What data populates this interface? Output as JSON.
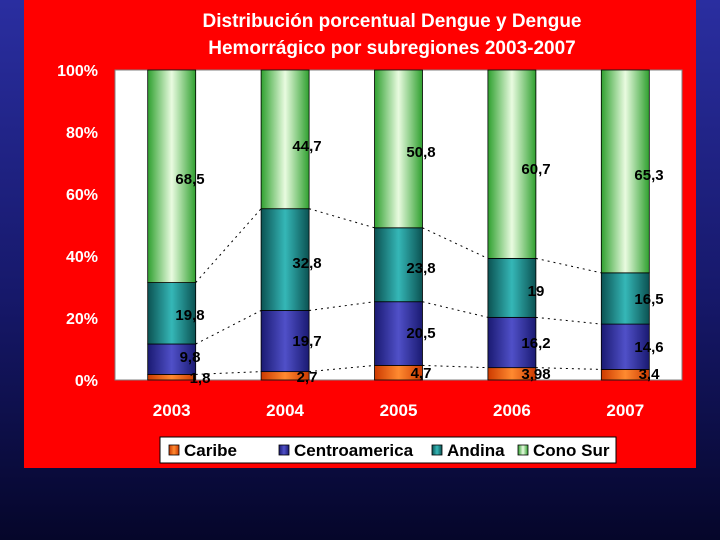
{
  "colors": {
    "background": "#1c1f86",
    "chart_panel": "#ff0000",
    "plot_area": "#ffffff",
    "Caribe": "#ff5a00",
    "Centroamerica": "#2c2c94",
    "Andina": "#1f8c8c",
    "Cono Sur": "#8fe28f"
  },
  "chart_data": {
    "type": "bar",
    "stacked": true,
    "percent_stacked": true,
    "title": [
      "Distribución porcentual Dengue y Dengue",
      "Hemorrágico por subregiones 2003-2007"
    ],
    "categories": [
      "2003",
      "2004",
      "2005",
      "2006",
      "2007"
    ],
    "ylim": [
      0,
      100
    ],
    "yticks": [
      "0%",
      "20%",
      "40%",
      "60%",
      "80%",
      "100%"
    ],
    "legend_position": "bottom",
    "series": [
      {
        "name": "Caribe",
        "values": [
          1.8,
          2.7,
          4.7,
          3.98,
          3.4
        ],
        "labels": [
          "1,8",
          "2,7",
          "4,7",
          "3,98",
          "3,4"
        ]
      },
      {
        "name": "Centroamerica",
        "values": [
          9.8,
          19.7,
          20.5,
          16.2,
          14.6
        ],
        "labels": [
          "9,8",
          "19,7",
          "20,5",
          "16,2",
          "14,6"
        ]
      },
      {
        "name": "Andina",
        "values": [
          19.8,
          32.8,
          23.8,
          19,
          16.5
        ],
        "labels": [
          "19,8",
          "32,8",
          "23,8",
          "19",
          "16,5"
        ]
      },
      {
        "name": "Cono Sur",
        "values": [
          68.5,
          44.7,
          50.8,
          60.7,
          65.3
        ],
        "labels": [
          "68,5",
          "44,7",
          "50,8",
          "60,7",
          "65,3"
        ]
      }
    ]
  }
}
